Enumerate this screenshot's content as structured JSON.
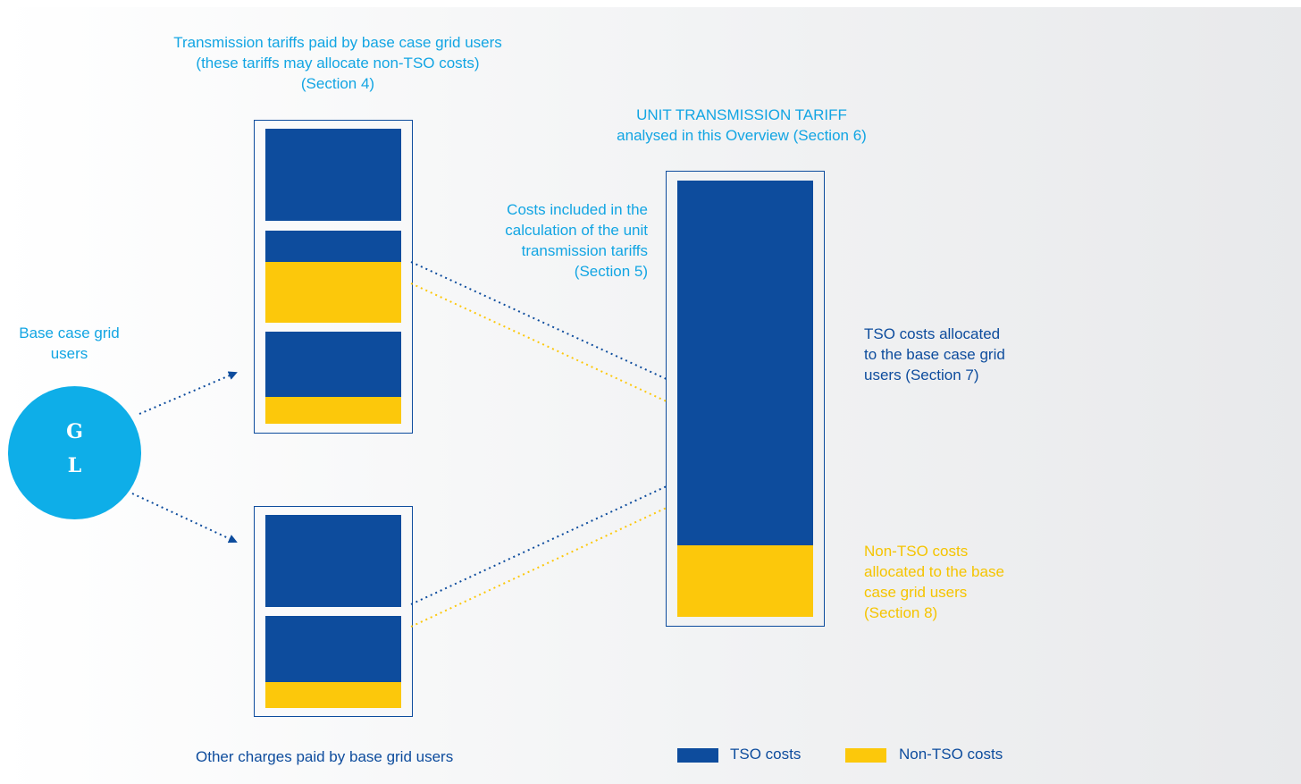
{
  "labels": {
    "tariffs_paid": "Transmission tariffs paid by base case grid users (these tariffs may allocate non-TSO costs) (Section 4)",
    "unit_tariff_title": "UNIT TRANSMISSION TARIFF",
    "unit_tariff_sub": "analysed in this Overview (Section 6)",
    "costs_included": "Costs included in the calculation of the unit transmission tariffs (Section 5)",
    "base_case": "Base case grid users",
    "gl_line1": "G",
    "gl_line2": "L",
    "tso_allocated": "TSO costs allocated to the base case grid users (Section 7)",
    "nontso_allocated": "Non-TSO costs allocated to the base case grid users (Section 8)",
    "other_charges": "Other charges paid by base grid users"
  },
  "legend": {
    "tso": "TSO costs",
    "non_tso": "Non-TSO costs"
  },
  "colors": {
    "tso": "#0d4c9d",
    "non_tso": "#fcc80b",
    "accent_cyan": "#12a5e3"
  }
}
